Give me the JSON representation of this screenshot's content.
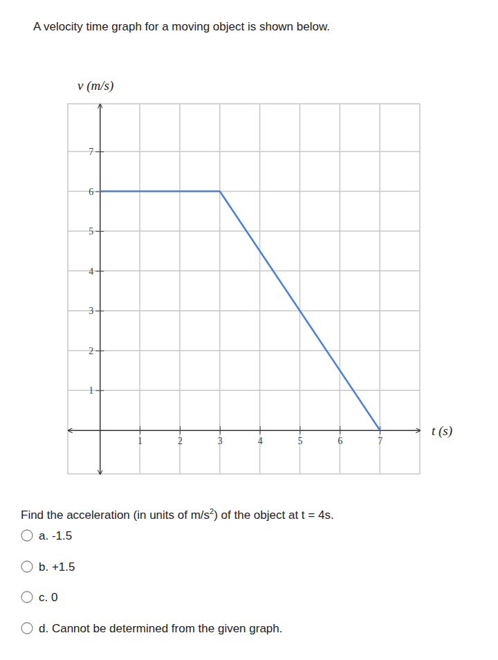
{
  "chart_data": {
    "type": "line",
    "x_label": "t (s)",
    "y_label": "v (m/s)",
    "x": [
      0,
      3,
      7
    ],
    "values": [
      6,
      6,
      0
    ],
    "color": "#4a80d4",
    "xlim": [
      -0.8,
      8
    ],
    "ylim": [
      -1.1,
      8.2
    ],
    "xticks": [
      1,
      2,
      3,
      4,
      5,
      6,
      7
    ],
    "yticks": [
      1,
      2,
      3,
      4,
      5,
      6,
      7
    ],
    "grid": true
  },
  "page": {
    "intro": "A velocity time graph for a moving object is shown below.",
    "question": {
      "before": "Find the acceleration (in units of m/s",
      "sup": "2",
      "after": ") of the object at t = 4s."
    },
    "options": [
      "a. -1.5",
      "b. +1.5",
      "c. 0",
      "d. Cannot be determined from the given graph."
    ]
  }
}
